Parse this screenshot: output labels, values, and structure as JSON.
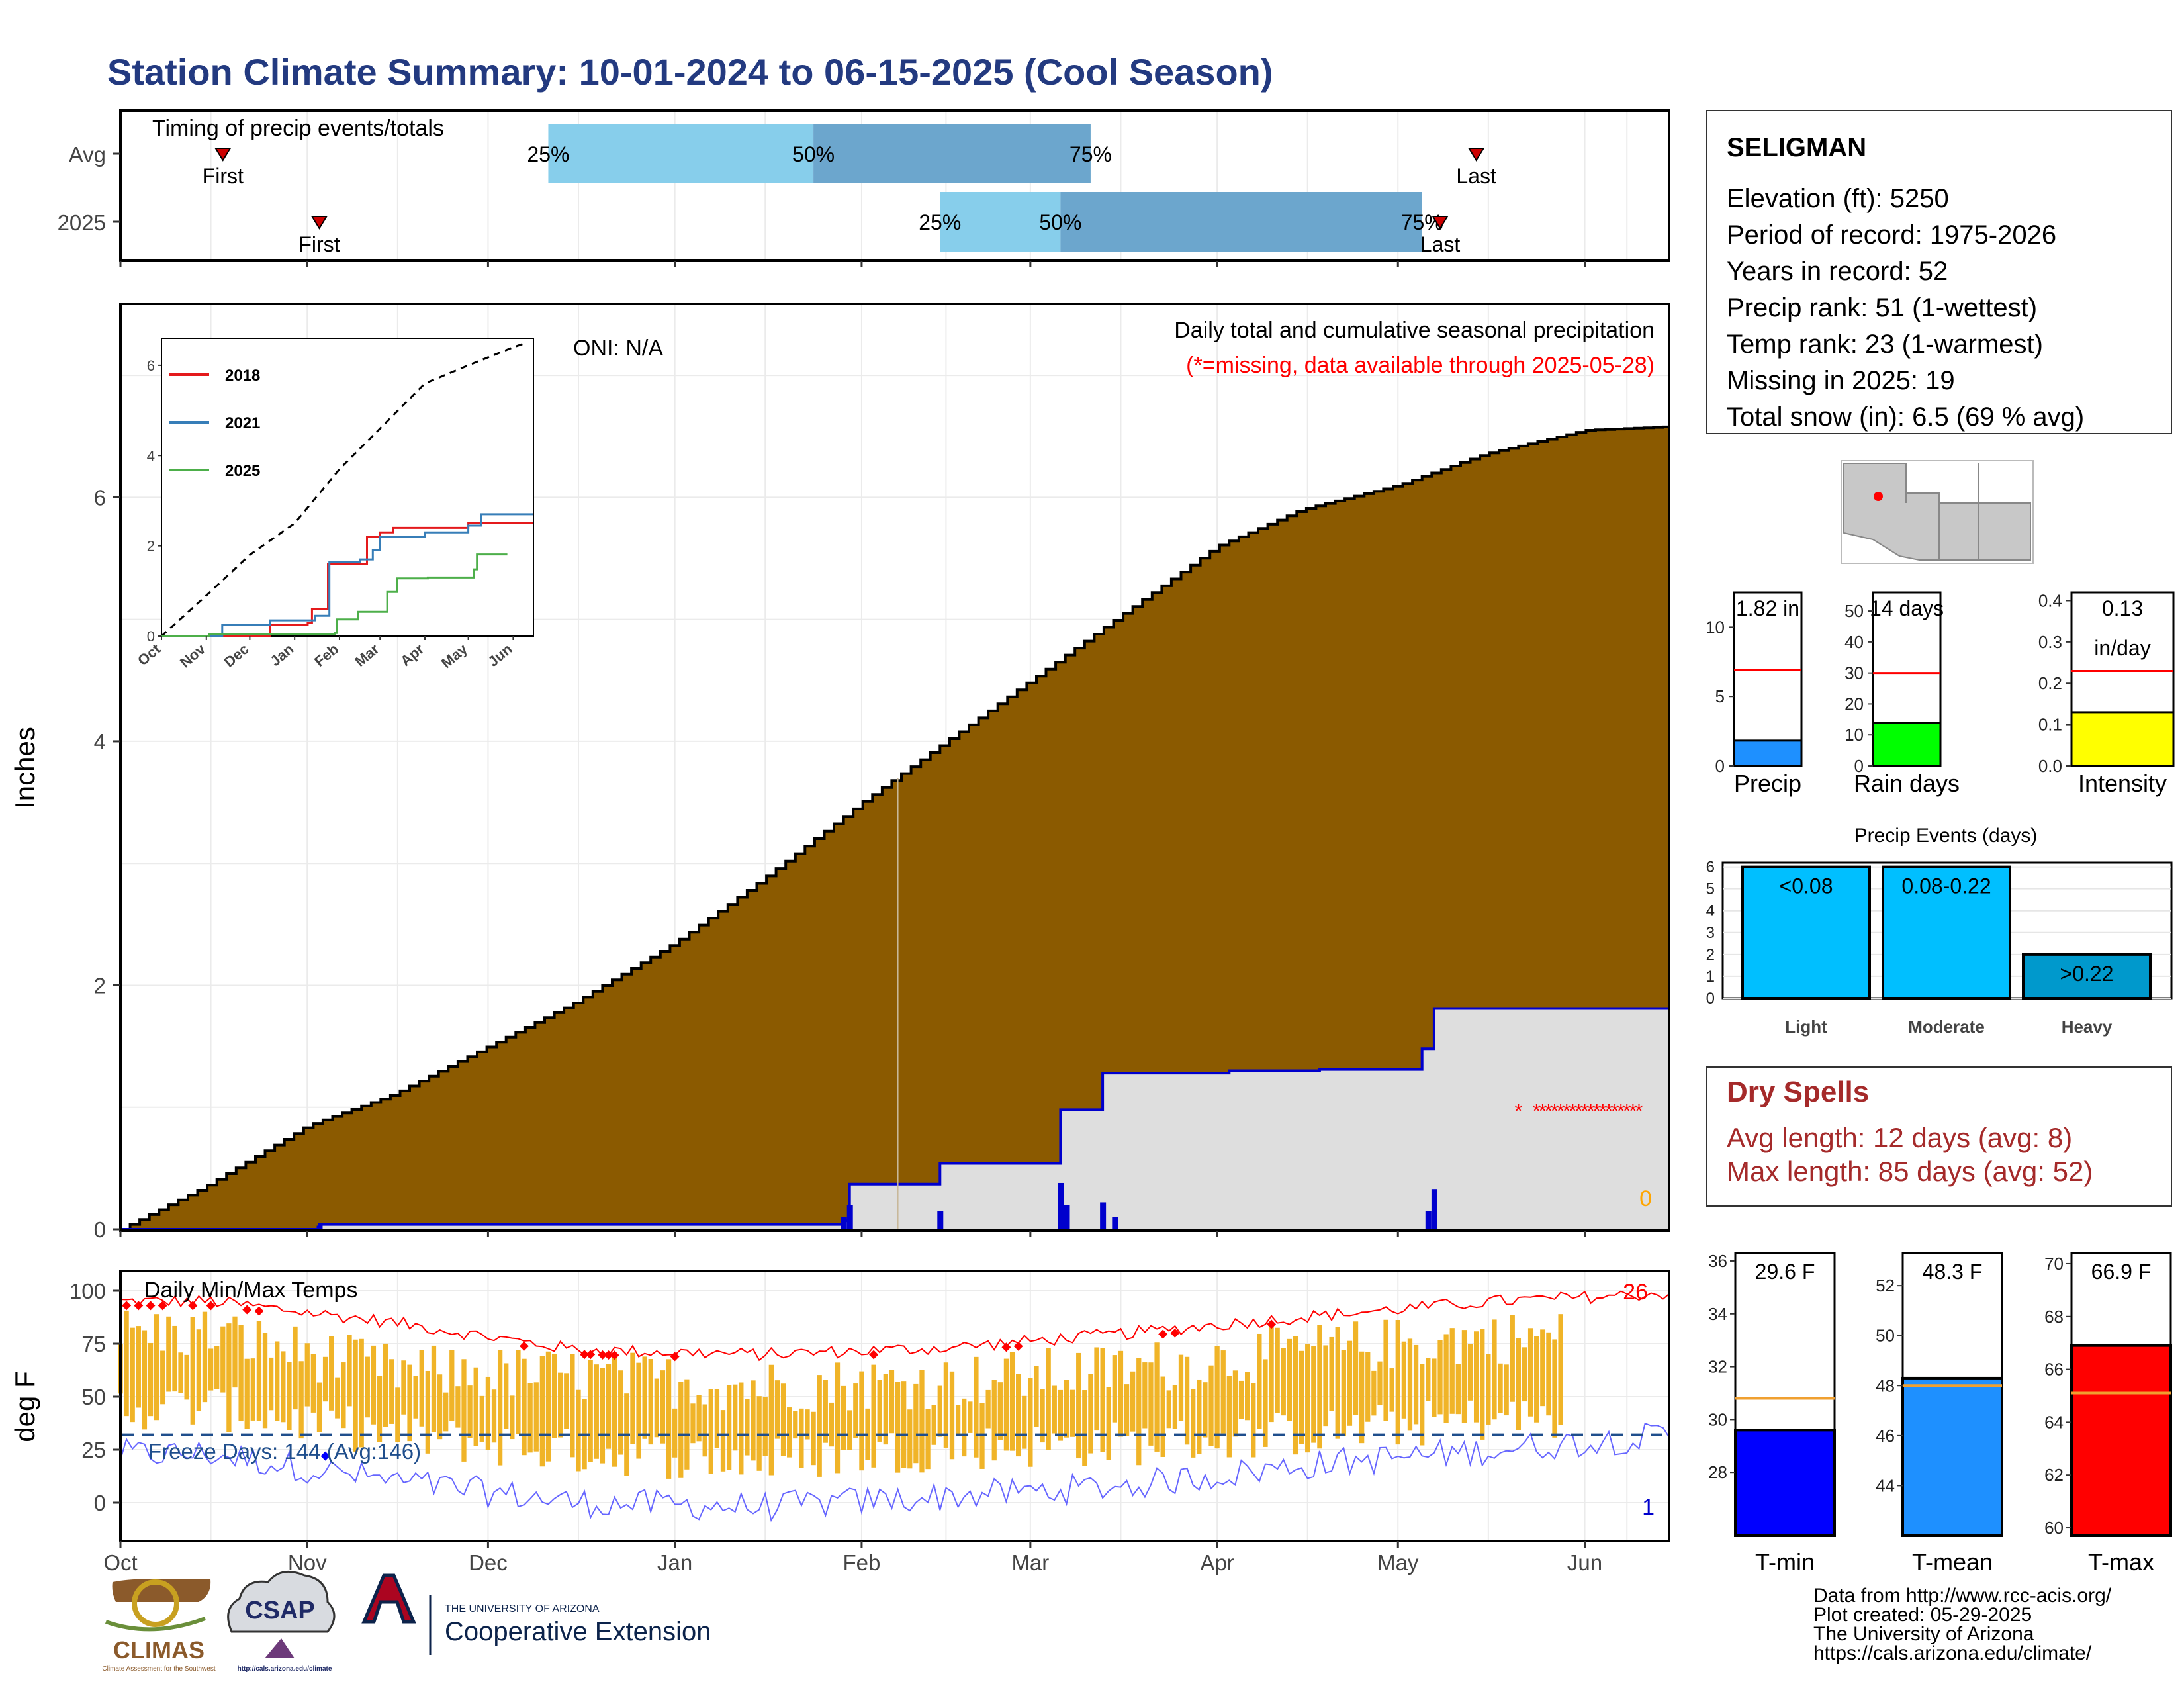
{
  "title": "Station Climate Summary: 10-01-2024 to 06-15-2025 (Cool Season)",
  "colors": {
    "title": "#233a80",
    "precip_fill": "#8b5a00",
    "year_line": "#0000cd",
    "temp_bar": "#f0b428",
    "record_high": "#ff0000",
    "record_low": "#6666ff",
    "freeze_line": "#1f4e8c"
  },
  "timing": {
    "title": "Timing of precip events/totals",
    "rows": [
      {
        "label": "Avg",
        "first_label": "First",
        "last_label": "Last",
        "first": "2024-10-18",
        "last": "2025-05-14",
        "p25": "2024-12-11",
        "p50": "2025-01-24",
        "p75": "2025-03-11",
        "p25_label": "25%",
        "p50_label": "50%",
        "p75_label": "75%"
      },
      {
        "label": "2025",
        "first_label": "First",
        "last_label": "Last",
        "first": "2024-11-03",
        "last": "2025-05-08",
        "p25": "2025-02-14",
        "p50": "2025-03-06",
        "p75": "2025-05-05",
        "p25_label": "25%",
        "p50_label": "50%",
        "p75_label": "75%"
      }
    ]
  },
  "main_chart": {
    "ylabel": "Inches",
    "oni": "ONI: N/A",
    "caption": "Daily total and cumulative seasonal precipitation",
    "missing_note": "(*=missing, data available through 2025-05-28)",
    "zero_label": "0",
    "yticks": [
      "0",
      "2",
      "4",
      "6"
    ],
    "xticks": [
      "Oct",
      "Nov",
      "Dec",
      "Jan",
      "Feb",
      "Mar",
      "Apr",
      "May",
      "Jun"
    ]
  },
  "inset": {
    "legend": [
      "2018",
      "2021",
      "2025"
    ],
    "yticks": [
      "0",
      "2",
      "4",
      "6"
    ],
    "xticks": [
      "Oct",
      "Nov",
      "Dec",
      "Jan",
      "Feb",
      "Mar",
      "Apr",
      "May",
      "Jun"
    ]
  },
  "temp_chart": {
    "title": "Daily Min/Max Temps",
    "ylabel": "deg F",
    "freeze_label": "Freeze Days: 144 (Avg:146)",
    "high_count": "26",
    "low_count": "1",
    "yticks": [
      "0",
      "25",
      "50",
      "75",
      "100"
    ]
  },
  "station": {
    "name": "SELIGMAN",
    "lines": [
      "Elevation (ft): 5250",
      "Period of record: 1975-2026",
      "Years in record: 52",
      "Precip rank: 51 (1-wettest)",
      "Temp rank: 23 (1-warmest)",
      "Missing in 2025: 19",
      "Total snow (in): 6.5 (69 % avg)"
    ]
  },
  "summary_bars": [
    {
      "label": "Precip",
      "value_text": "1.82 in",
      "value": 1.82,
      "avg": 6.9,
      "ymax": 12.5,
      "ticks": [
        "0",
        "5",
        "10"
      ],
      "color": "#1e90ff"
    },
    {
      "label": "Rain days",
      "value_text": "14 days",
      "value": 14,
      "avg": 30,
      "ymax": 56,
      "ticks": [
        "0",
        "10",
        "20",
        "30",
        "40",
        "50"
      ],
      "color": "#00ff00"
    },
    {
      "label": "Intensity",
      "value_text": "0.13",
      "value_text2": "in/day",
      "value": 0.13,
      "avg": 0.23,
      "ymax": 0.42,
      "ticks": [
        "0.0",
        "0.1",
        "0.2",
        "0.3",
        "0.4"
      ],
      "color": "#ffff00"
    }
  ],
  "precip_events": {
    "title": "Precip Events (days)",
    "ticks": [
      "0",
      "1",
      "2",
      "3",
      "4",
      "5",
      "6"
    ],
    "categories": [
      {
        "label": "Light",
        "range": "<0.08",
        "value": 6
      },
      {
        "label": "Moderate",
        "range": "0.08-0.22",
        "value": 6
      },
      {
        "label": "Heavy",
        "range": ">0.22",
        "value": 2
      }
    ]
  },
  "dry_spells": {
    "title": "Dry Spells",
    "lines": [
      "Avg length: 12 days (avg: 8)",
      "Max length: 85 days (avg: 52)"
    ]
  },
  "temp_bars": [
    {
      "label": "T-min",
      "value_text": "29.6 F",
      "value": 29.6,
      "avg": 30.8,
      "ymin": 25.6,
      "ymax": 36.3,
      "ticks": [
        "28",
        "30",
        "32",
        "34",
        "36"
      ],
      "color": "#0000ff"
    },
    {
      "label": "T-mean",
      "value_text": "48.3 F",
      "value": 48.3,
      "avg": 48.0,
      "ymin": 42.0,
      "ymax": 53.3,
      "ticks": [
        "44",
        "46",
        "48",
        "50",
        "52"
      ],
      "color": "#1e90ff"
    },
    {
      "label": "T-max",
      "value_text": "66.9 F",
      "value": 66.9,
      "avg": 65.1,
      "ymin": 59.7,
      "ymax": 70.4,
      "ticks": [
        "60",
        "62",
        "64",
        "66",
        "68",
        "70"
      ],
      "color": "#ff0000"
    }
  ],
  "footer": {
    "lines": [
      "Data from http://www.rcc-acis.org/",
      "Plot created: 05-29-2025",
      "The University of Arizona",
      "https://cals.arizona.edu/climate/"
    ],
    "logos": {
      "climas": "CLIMAS",
      "climas_sub": "Climate Assessment for the Southwest",
      "csap": "CSAP",
      "csap_url": "http://cals.arizona.edu/climate",
      "ua_small": "THE UNIVERSITY OF ARIZONA",
      "ua_main": "Cooperative Extension"
    }
  },
  "chart_data": [
    {
      "type": "area",
      "title": "Daily total and cumulative seasonal precipitation",
      "ylabel": "Inches",
      "xlim": [
        "2024-10-01",
        "2025-06-15"
      ],
      "ylim": [
        0,
        7.2
      ],
      "series": [
        {
          "name": "",
          "kind": "cumulative average (area)",
          "x": [
            "2024-10-01",
            "2024-10-15",
            "2024-11-01",
            "2024-11-15",
            "2024-12-01",
            "2024-12-15",
            "2025-01-01",
            "2025-01-15",
            "2025-02-01",
            "2025-02-15",
            "2025-03-01",
            "2025-03-15",
            "2025-04-01",
            "2025-04-15",
            "2025-05-01",
            "2025-05-15",
            "2025-06-01",
            "2025-06-15"
          ],
          "values": [
            0,
            0.35,
            0.85,
            1.1,
            1.5,
            1.85,
            2.35,
            2.85,
            3.5,
            4.0,
            4.5,
            5.0,
            5.6,
            5.9,
            6.1,
            6.35,
            6.55,
            6.58
          ]
        },
        {
          "name": "",
          "kind": "cumulative 2025",
          "x": [
            "2024-10-01",
            "2024-11-03",
            "2025-01-29",
            "2025-01-30",
            "2025-02-14",
            "2025-03-06",
            "2025-03-13",
            "2025-04-03",
            "2025-04-18",
            "2025-05-05",
            "2025-05-07",
            "2025-06-15"
          ],
          "values": [
            0,
            0.04,
            0.07,
            0.37,
            0.54,
            0.98,
            1.28,
            1.3,
            1.31,
            1.48,
            1.81,
            1.81
          ]
        },
        {
          "name": "",
          "kind": "daily precip 2025",
          "x": [
            "2024-11-03",
            "2025-01-29",
            "2025-01-30",
            "2025-02-14",
            "2025-03-06",
            "2025-03-07",
            "2025-03-13",
            "2025-03-15",
            "2025-05-06",
            "2025-05-07"
          ],
          "values": [
            0.03,
            0.1,
            0.2,
            0.15,
            0.38,
            0.2,
            0.22,
            0.1,
            0.15,
            0.33
          ]
        }
      ],
      "missing_dates": [
        "2025-05-21",
        "2025-05-24",
        "2025-05-25",
        "2025-05-26",
        "2025-05-27",
        "2025-05-28",
        "2025-05-29",
        "2025-05-30",
        "2025-05-31",
        "2025-06-01",
        "2025-06-02",
        "2025-06-03",
        "2025-06-04",
        "2025-06-05",
        "2025-06-06",
        "2025-06-07",
        "2025-06-08",
        "2025-06-09",
        "2025-06-10"
      ]
    },
    {
      "type": "line",
      "title": "",
      "xlim": [
        "2024-10-01",
        "2025-06-15"
      ],
      "ylim": [
        0,
        6.5
      ],
      "series": [
        {
          "name": "",
          "style": "dashed",
          "x": [
            "2024-10-01",
            "2024-11-01",
            "2024-12-01",
            "2025-01-01",
            "2025-02-01",
            "2025-03-01",
            "2025-04-01",
            "2025-05-01",
            "2025-06-01",
            "2025-06-10"
          ],
          "values": [
            0,
            0.9,
            1.8,
            2.5,
            3.7,
            4.6,
            5.6,
            6.0,
            6.4,
            6.5
          ]
        },
        {
          "name": "2018",
          "x": [
            "2024-10-01",
            "2024-12-15",
            "2025-01-10",
            "2025-01-13",
            "2025-01-24",
            "2025-02-09",
            "2025-02-20",
            "2025-03-01",
            "2025-03-10",
            "2025-04-01",
            "2025-04-15",
            "2025-05-01",
            "2025-06-15"
          ],
          "values": [
            0,
            0.25,
            0.3,
            0.6,
            1.6,
            1.6,
            2.2,
            2.3,
            2.4,
            2.4,
            2.4,
            2.5,
            2.5
          ]
        },
        {
          "name": "2021",
          "x": [
            "2024-10-01",
            "2024-11-12",
            "2024-12-15",
            "2025-01-15",
            "2025-01-25",
            "2025-02-15",
            "2025-02-24",
            "2025-03-01",
            "2025-04-01",
            "2025-05-01",
            "2025-05-10",
            "2025-06-15"
          ],
          "values": [
            0,
            0.25,
            0.35,
            0.45,
            1.65,
            1.7,
            1.9,
            2.2,
            2.3,
            2.45,
            2.7,
            2.7
          ]
        },
        {
          "name": "2025",
          "x": [
            "2024-10-01",
            "2024-11-03",
            "2025-01-29",
            "2025-01-30",
            "2025-02-14",
            "2025-03-06",
            "2025-03-13",
            "2025-04-03",
            "2025-05-05",
            "2025-05-07",
            "2025-05-28"
          ],
          "values": [
            0,
            0.04,
            0.07,
            0.37,
            0.54,
            0.98,
            1.28,
            1.3,
            1.48,
            1.81,
            1.81
          ]
        }
      ]
    },
    {
      "type": "bar",
      "title": "Daily Min/Max Temps",
      "ylabel": "deg F",
      "xlim": [
        "2024-10-01",
        "2025-06-15"
      ],
      "ylim": [
        -15,
        110
      ],
      "freeze_threshold": 32,
      "series": [
        {
          "name": "",
          "kind": "approx. max temp (monthly)",
          "x": [
            "Oct",
            "Nov",
            "Dec",
            "Jan",
            "Feb",
            "Mar",
            "Apr",
            "May"
          ],
          "values": [
            80,
            62,
            60,
            55,
            57,
            63,
            72,
            78
          ]
        },
        {
          "name": "",
          "kind": "approx. min temp (monthly)",
          "x": [
            "Oct",
            "Nov",
            "Dec",
            "Jan",
            "Feb",
            "Mar",
            "Apr",
            "May"
          ],
          "values": [
            45,
            32,
            24,
            20,
            26,
            28,
            33,
            40
          ]
        },
        {
          "name": "",
          "kind": "record high (monthly approx.)",
          "x": [
            "Oct",
            "Nov",
            "Dec",
            "Jan",
            "Feb",
            "Mar",
            "Apr",
            "May",
            "Jun"
          ],
          "values": [
            95,
            85,
            72,
            70,
            73,
            80,
            88,
            95,
            99
          ]
        },
        {
          "name": "",
          "kind": "record low (monthly approx.)",
          "x": [
            "Oct",
            "Nov",
            "Dec",
            "Jan",
            "Feb",
            "Mar",
            "Apr",
            "May",
            "Jun"
          ],
          "values": [
            23,
            10,
            0,
            -2,
            3,
            8,
            18,
            25,
            32
          ]
        }
      ]
    },
    {
      "type": "bar",
      "title": "Precip Events (days)",
      "categories": [
        "Light",
        "Moderate",
        "Heavy"
      ],
      "values": [
        6,
        6,
        2
      ],
      "ylim": [
        0,
        6.2
      ]
    }
  ]
}
